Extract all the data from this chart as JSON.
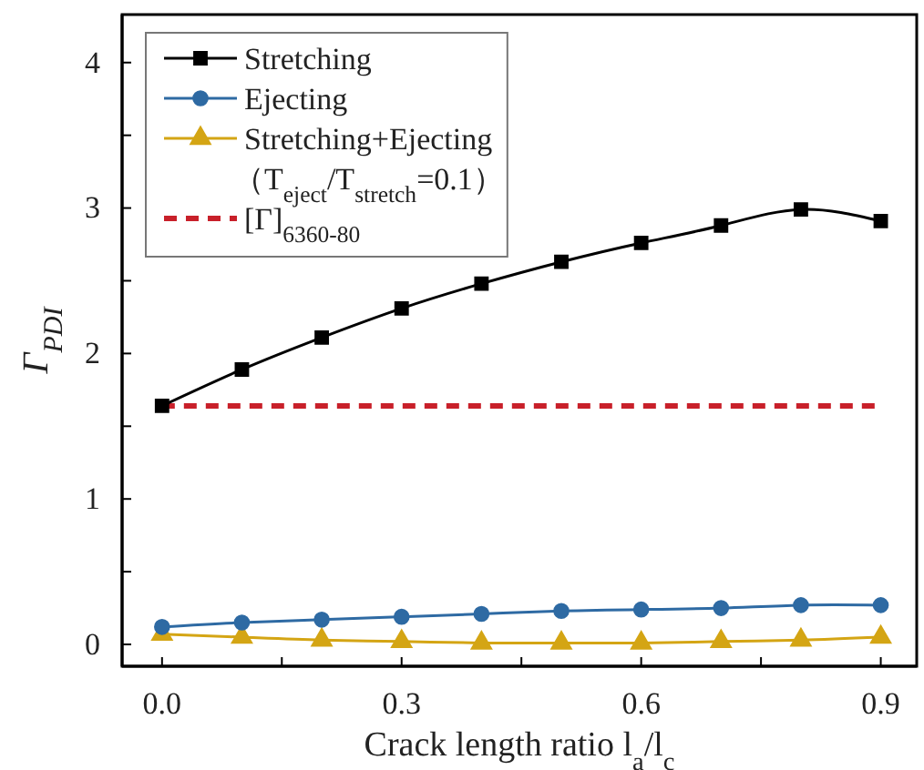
{
  "chart_data": {
    "type": "line",
    "xlabel": "Crack length ratio l$_{a}$/l$_{c}$",
    "ylabel": "Γ$_{PDI}$",
    "x": [
      0,
      0.1,
      0.2,
      0.3,
      0.4,
      0.5,
      0.6,
      0.7,
      0.8,
      0.9
    ],
    "series": [
      {
        "name": "Stretching",
        "color": "#000000",
        "marker": "square",
        "values": [
          1.64,
          1.89,
          2.11,
          2.31,
          2.48,
          2.63,
          2.76,
          2.88,
          2.99,
          2.91
        ]
      },
      {
        "name": "Ejecting",
        "color": "#2e6aa3",
        "marker": "circle",
        "values": [
          0.12,
          0.15,
          0.17,
          0.19,
          0.21,
          0.23,
          0.24,
          0.25,
          0.27,
          0.27
        ]
      },
      {
        "name": "Stretching+Ejecting\n（T$_{eject}$/T$_{stretch}$=0.1）",
        "color": "#d4a514",
        "marker": "triangle",
        "values": [
          0.07,
          0.05,
          0.03,
          0.02,
          0.01,
          0.01,
          0.01,
          0.02,
          0.03,
          0.05
        ]
      }
    ],
    "ref_lines": [
      {
        "axis": "y",
        "value": 1.64,
        "label": "[Γ]$_{6360-80}$",
        "color": "#c8202a",
        "line_style": "dashed"
      }
    ],
    "xlim": [
      -0.05,
      0.945
    ],
    "ylim": [
      -0.15,
      4.33
    ],
    "xticks": [
      {
        "value": 0,
        "label": "0.0"
      },
      {
        "value": 0.15,
        "label": null
      },
      0.3,
      {
        "value": 0.45,
        "label": null
      },
      0.6,
      {
        "value": 0.75,
        "label": null
      },
      0.9
    ],
    "yticks": [
      0,
      {
        "value": 0.5,
        "label": null
      },
      1,
      {
        "value": 1.5,
        "label": null
      },
      2,
      {
        "value": 2.5,
        "label": null
      },
      3,
      {
        "value": 3.5,
        "label": null
      },
      4
    ],
    "legend": "top left",
    "grid": false,
    "line_style": "solid"
  }
}
